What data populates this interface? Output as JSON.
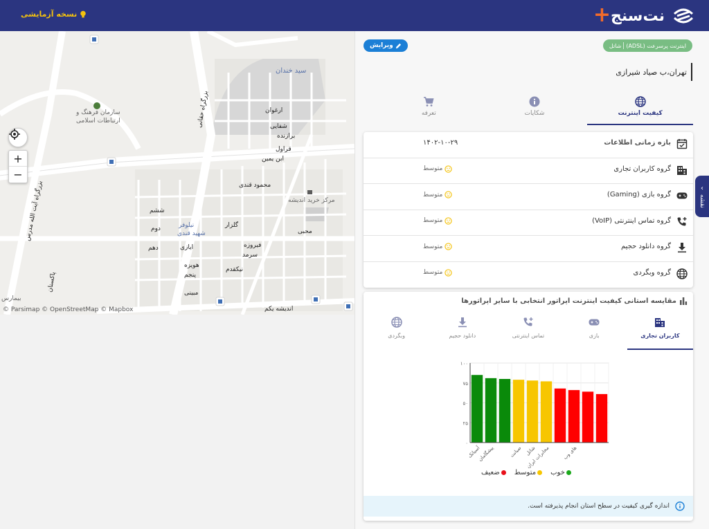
{
  "header": {
    "beta_label": "نسخه آزمایشی",
    "logo_text": "نت‌سنج",
    "colors": {
      "bar": "#2b3580",
      "accent": "#f26b2a",
      "beta": "#f4c20d"
    }
  },
  "map": {
    "labels": {
      "sazman": "سازمان فرهنگ و",
      "sazman2": "ارتباطات اسلامی",
      "seyed_khandan": "سید خندان",
      "haqqani": "بزرگراه حقانی",
      "arghavan": "ارغوان",
      "shafaei": "شفایی",
      "barazandeh": "برازنده",
      "gharaval": "قراول",
      "ebn_yamin": "ابن یمین",
      "mahmoud_ghandi": "محمود قندی",
      "ayatollah_modarres": "بزرگراه آیت الله مدرس",
      "shesham": "ششم",
      "dovom": "دوم",
      "dahom": "دهم",
      "niloofar": "نیلوفر",
      "shahid_ghandi": "شهید قندی",
      "golzar": "گلزار",
      "ayazi": "ایازی",
      "firouzeh": "فیروزه",
      "sarmad": "سرمد",
      "hoveizeh": "هویزه",
      "panjom": "پنجم",
      "nikghadam": "نیکقدم",
      "mobini": "مبینی",
      "andisheh_yekom": "اندیشه یکم",
      "markaz_kharid": "مرکز خرید اندیشه",
      "mohebbi": "محبی",
      "pakestan": "پاکستان",
      "bimarestan": "بیمارس"
    },
    "attribution": "© Parsimap © OpenStreetMap © Mapbox"
  },
  "panel": {
    "tags": [
      "اینترنت پرسرعت (ADSL)",
      "شاتل"
    ],
    "edit_label": "ویرایش",
    "address": "تهران،ب صیاد شیرازی",
    "tabs": [
      {
        "label": "کیفیت اینترنت",
        "icon": "globe-icon"
      },
      {
        "label": "شکایات",
        "icon": "info-circle-icon"
      },
      {
        "label": "تعرفه",
        "icon": "cart-icon"
      }
    ],
    "info_rows": [
      {
        "label": "بازه زمانی اطلاعات",
        "value": "۱۴۰۲-۱۰-۲۹",
        "icon": "calendar-check-icon"
      },
      {
        "label": "گروه کاربران تجاری",
        "value": "متوسط",
        "icon": "building-icon"
      },
      {
        "label": "گروه بازی (Gaming)",
        "value": "متوسط",
        "icon": "gamepad-icon"
      },
      {
        "label": "گروه تماس اینترنتی (VoIP)",
        "value": "متوسط",
        "icon": "phone-plus-icon"
      },
      {
        "label": "گروه دانلود حجیم",
        "value": "متوسط",
        "icon": "download-icon"
      },
      {
        "label": "گروه وبگردی",
        "value": "متوسط",
        "icon": "globe-icon"
      }
    ],
    "compare_title": "مقایسه استانی کیفیت اینترنت اپراتور انتخابی با سایر اپراتورها",
    "sub_tabs": [
      {
        "label": "کاربران تجاری",
        "icon": "building-icon"
      },
      {
        "label": "بازی",
        "icon": "gamepad-icon"
      },
      {
        "label": "تماس اینترنتی",
        "icon": "phone-plus-icon"
      },
      {
        "label": "دانلود حجیم",
        "icon": "download-icon"
      },
      {
        "label": "وبگردی",
        "icon": "globe-icon"
      }
    ],
    "legend": [
      {
        "label": "خوب",
        "color": "#1aa81a"
      },
      {
        "label": "متوسط",
        "color": "#f7c600"
      },
      {
        "label": "ضعیف",
        "color": "#e8101a"
      }
    ],
    "note": "اندازه گیری کیفیت در سطح استان انجام پذیرفته است.",
    "side_tab": "نقشه"
  },
  "chart_data": {
    "type": "bar",
    "categories": [
      "آسیاتک",
      "پیشگامان",
      "",
      "صبانت",
      "شاتل",
      "مخابرات ایران",
      "",
      "های وب",
      "",
      ""
    ],
    "values": [
      85,
      81,
      80,
      79,
      78,
      77,
      68,
      66,
      64,
      61
    ],
    "colors": [
      "#0a8a0a",
      "#0a8a0a",
      "#0a8a0a",
      "#f7c600",
      "#f7c600",
      "#f7c600",
      "#ff0000",
      "#ff0000",
      "#ff0000",
      "#ff0000"
    ],
    "yticks": [
      "۰",
      "۲۵",
      "۵۰",
      "۷۵",
      "۱۰۰"
    ],
    "ylim": [
      0,
      100
    ],
    "grid": true
  }
}
